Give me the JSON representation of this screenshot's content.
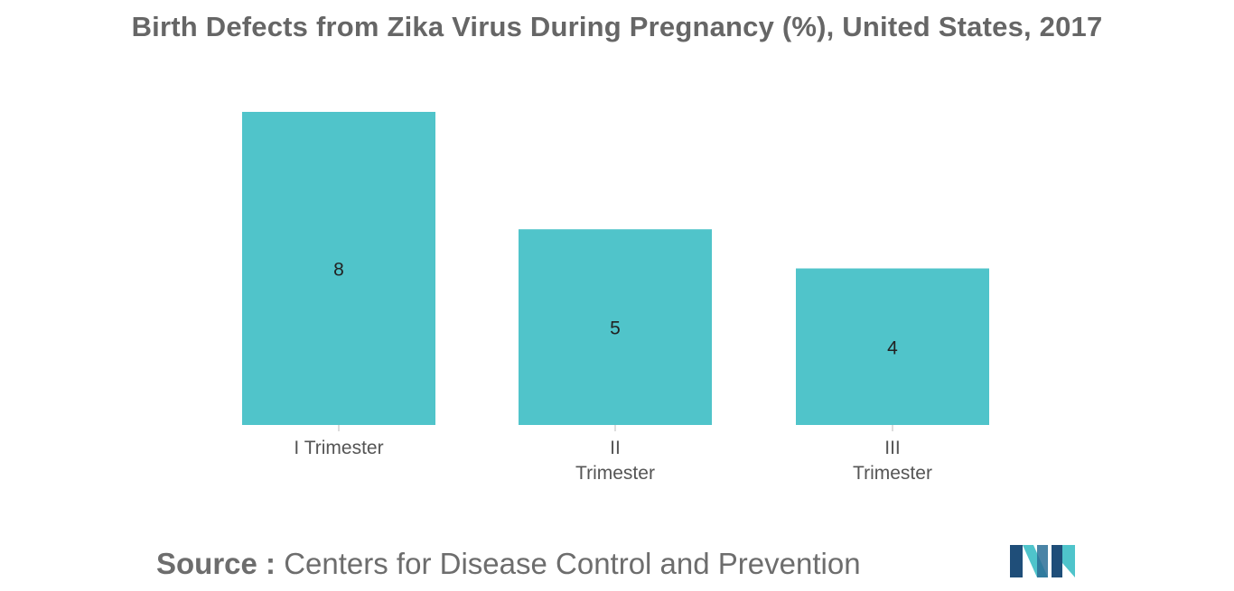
{
  "title": "Birth Defects from Zika Virus During Pregnancy (%), United States, 2017",
  "source": {
    "label": "Source :",
    "text": "Centers for Disease Control and Prevention"
  },
  "logo": {
    "icon": "mordor-logo-icon",
    "colors": [
      "#1f4e79",
      "#4fc4cb"
    ]
  },
  "chart_data": {
    "type": "bar",
    "categories": [
      [
        "I Trimester"
      ],
      [
        "II",
        "Trimester"
      ],
      [
        "III",
        "Trimester"
      ]
    ],
    "values": [
      8,
      5,
      4
    ],
    "data_labels": [
      "8",
      "5",
      "4"
    ],
    "ylim": [
      0,
      8
    ],
    "bar_color": "#50c4ca",
    "grid": false,
    "legend": "none"
  }
}
